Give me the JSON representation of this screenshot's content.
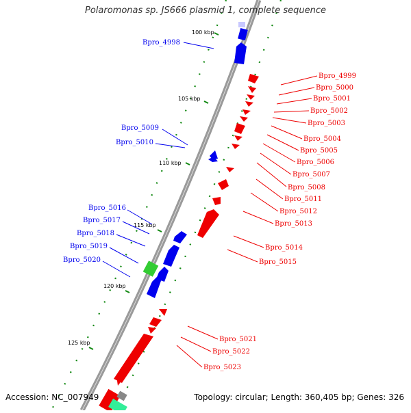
{
  "header": {
    "title": "Polaromonas sp. JS666 plasmid 1, complete sequence"
  },
  "footer": {
    "accession": "Accession: NC_007949",
    "summary": "Topology: circular; Length: 360,405 bp; Genes: 326"
  },
  "colors": {
    "forward_strand": "#0000ee",
    "reverse_strand": "#ee0000",
    "rna_feature": "#33cc33",
    "backbone": "#888888",
    "tick": "#118811"
  },
  "ruler": {
    "ticks": [
      "100 kbp",
      "105 kbp",
      "110 kbp",
      "115 kbp",
      "120 kbp",
      "125 kbp"
    ]
  },
  "genes": {
    "forward": [
      "Bpro_4998",
      "Bpro_5009",
      "Bpro_5010",
      "Bpro_5016",
      "Bpro_5017",
      "Bpro_5018",
      "Bpro_5019",
      "Bpro_5020"
    ],
    "reverse": [
      "Bpro_4999",
      "Bpro_5000",
      "Bpro_5001",
      "Bpro_5002",
      "Bpro_5003",
      "Bpro_5004",
      "Bpro_5005",
      "Bpro_5006",
      "Bpro_5007",
      "Bpro_5008",
      "Bpro_5011",
      "Bpro_5012",
      "Bpro_5013",
      "Bpro_5014",
      "Bpro_5015",
      "Bpro_5021",
      "Bpro_5022",
      "Bpro_5023"
    ]
  }
}
